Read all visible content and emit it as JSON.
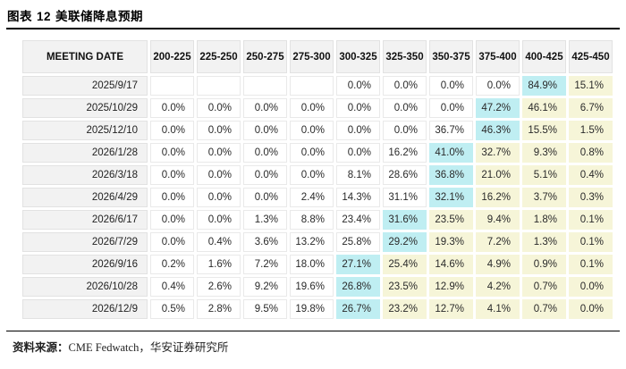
{
  "title": {
    "prefix": "图表",
    "number": "12",
    "text": "美联储降息预期"
  },
  "chart_data": {
    "type": "table",
    "title": "美联储降息预期",
    "date_header": "MEETING DATE",
    "rate_headers": [
      "200-225",
      "225-250",
      "250-275",
      "275-300",
      "300-325",
      "325-350",
      "350-375",
      "375-400",
      "400-425",
      "425-450"
    ],
    "rows": [
      {
        "date": "2025/9/17",
        "values": [
          "",
          "",
          "",
          "",
          "0.0%",
          "0.0%",
          "0.0%",
          "0.0%",
          "84.9%",
          "15.1%"
        ],
        "max_index": 8
      },
      {
        "date": "2025/10/29",
        "values": [
          "0.0%",
          "0.0%",
          "0.0%",
          "0.0%",
          "0.0%",
          "0.0%",
          "0.0%",
          "47.2%",
          "46.1%",
          "6.7%"
        ],
        "max_index": 7
      },
      {
        "date": "2025/12/10",
        "values": [
          "0.0%",
          "0.0%",
          "0.0%",
          "0.0%",
          "0.0%",
          "0.0%",
          "36.7%",
          "46.3%",
          "15.5%",
          "1.5%"
        ],
        "max_index": 7
      },
      {
        "date": "2026/1/28",
        "values": [
          "0.0%",
          "0.0%",
          "0.0%",
          "0.0%",
          "0.0%",
          "16.2%",
          "41.0%",
          "32.7%",
          "9.3%",
          "0.8%"
        ],
        "max_index": 6
      },
      {
        "date": "2026/3/18",
        "values": [
          "0.0%",
          "0.0%",
          "0.0%",
          "0.0%",
          "8.1%",
          "28.6%",
          "36.8%",
          "21.0%",
          "5.1%",
          "0.4%"
        ],
        "max_index": 6
      },
      {
        "date": "2026/4/29",
        "values": [
          "0.0%",
          "0.0%",
          "0.0%",
          "2.4%",
          "14.3%",
          "31.1%",
          "32.1%",
          "16.2%",
          "3.7%",
          "0.3%"
        ],
        "max_index": 6
      },
      {
        "date": "2026/6/17",
        "values": [
          "0.0%",
          "0.0%",
          "1.3%",
          "8.8%",
          "23.4%",
          "31.6%",
          "23.5%",
          "9.4%",
          "1.8%",
          "0.1%"
        ],
        "max_index": 5
      },
      {
        "date": "2026/7/29",
        "values": [
          "0.0%",
          "0.4%",
          "3.6%",
          "13.2%",
          "25.8%",
          "29.2%",
          "19.3%",
          "7.2%",
          "1.3%",
          "0.1%"
        ],
        "max_index": 5
      },
      {
        "date": "2026/9/16",
        "values": [
          "0.2%",
          "1.6%",
          "7.2%",
          "18.0%",
          "27.1%",
          "25.4%",
          "14.6%",
          "4.9%",
          "0.9%",
          "0.1%"
        ],
        "max_index": 4
      },
      {
        "date": "2026/10/28",
        "values": [
          "0.4%",
          "2.6%",
          "9.2%",
          "19.6%",
          "26.8%",
          "23.5%",
          "12.9%",
          "4.2%",
          "0.7%",
          "0.0%"
        ],
        "max_index": 4
      },
      {
        "date": "2026/12/9",
        "values": [
          "0.5%",
          "2.8%",
          "9.5%",
          "19.8%",
          "26.7%",
          "23.2%",
          "12.7%",
          "4.1%",
          "0.7%",
          "0.0%"
        ],
        "max_index": 4
      }
    ]
  },
  "footer": {
    "source_label": "资料来源：",
    "source_text": "CME Fedwatch，华安证券研究所"
  },
  "colors": {
    "highlight_max": "#bfeef2",
    "highlight_tail": "#f6f5d8",
    "header_bg": "#f2f2f2",
    "rule": "#000000"
  }
}
